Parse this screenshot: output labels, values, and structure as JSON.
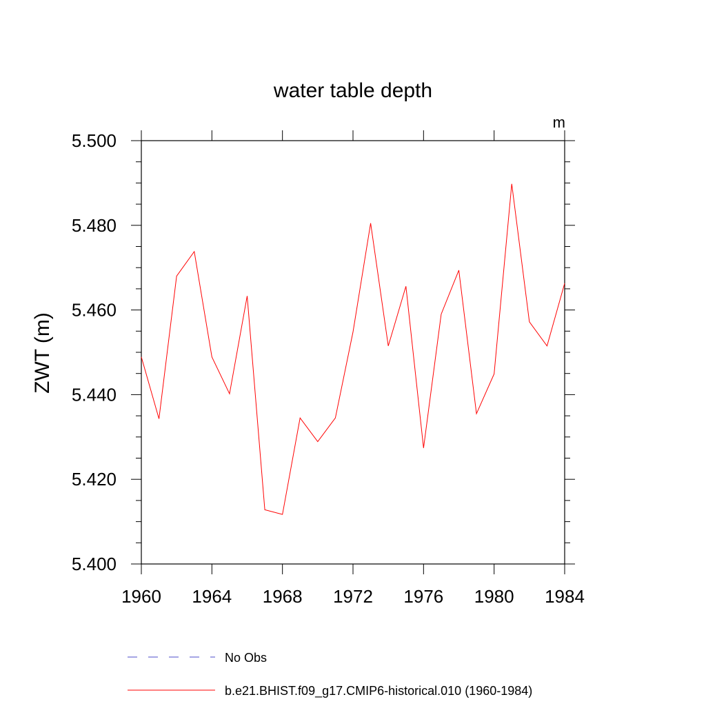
{
  "chart_data": {
    "type": "line",
    "title": "water table depth",
    "units_label": "m",
    "ylabel": "ZWT  (m)",
    "xlabel": "",
    "xlim": [
      1960,
      1984
    ],
    "ylim": [
      5.4,
      5.5
    ],
    "x_ticks": [
      "1960",
      "1964",
      "1968",
      "1972",
      "1976",
      "1980",
      "1984"
    ],
    "y_ticks": [
      "5.400",
      "5.420",
      "5.440",
      "5.460",
      "5.480",
      "5.500"
    ],
    "grid": false,
    "legend_placement": "bottom",
    "series": [
      {
        "name": "No Obs",
        "color": "#4b4bc8",
        "style": "dashed",
        "x": [],
        "y": []
      },
      {
        "name": "b.e21.BHIST.f09_g17.CMIP6-historical.010 (1960-1984)",
        "color": "#ff0000",
        "style": "solid",
        "x": [
          1960,
          1961,
          1962,
          1963,
          1964,
          1965,
          1966,
          1967,
          1968,
          1969,
          1970,
          1971,
          1972,
          1973,
          1974,
          1975,
          1976,
          1977,
          1978,
          1979,
          1980,
          1981,
          1982,
          1983,
          1984
        ],
        "y": [
          5.4489,
          5.4343,
          5.468,
          5.4738,
          5.4489,
          5.4402,
          5.4633,
          5.4128,
          5.4117,
          5.4345,
          5.4289,
          5.4345,
          5.4548,
          5.4805,
          5.4515,
          5.4656,
          5.4274,
          5.459,
          5.4694,
          5.4355,
          5.4449,
          5.4898,
          5.4572,
          5.4515,
          5.4663
        ]
      }
    ]
  }
}
